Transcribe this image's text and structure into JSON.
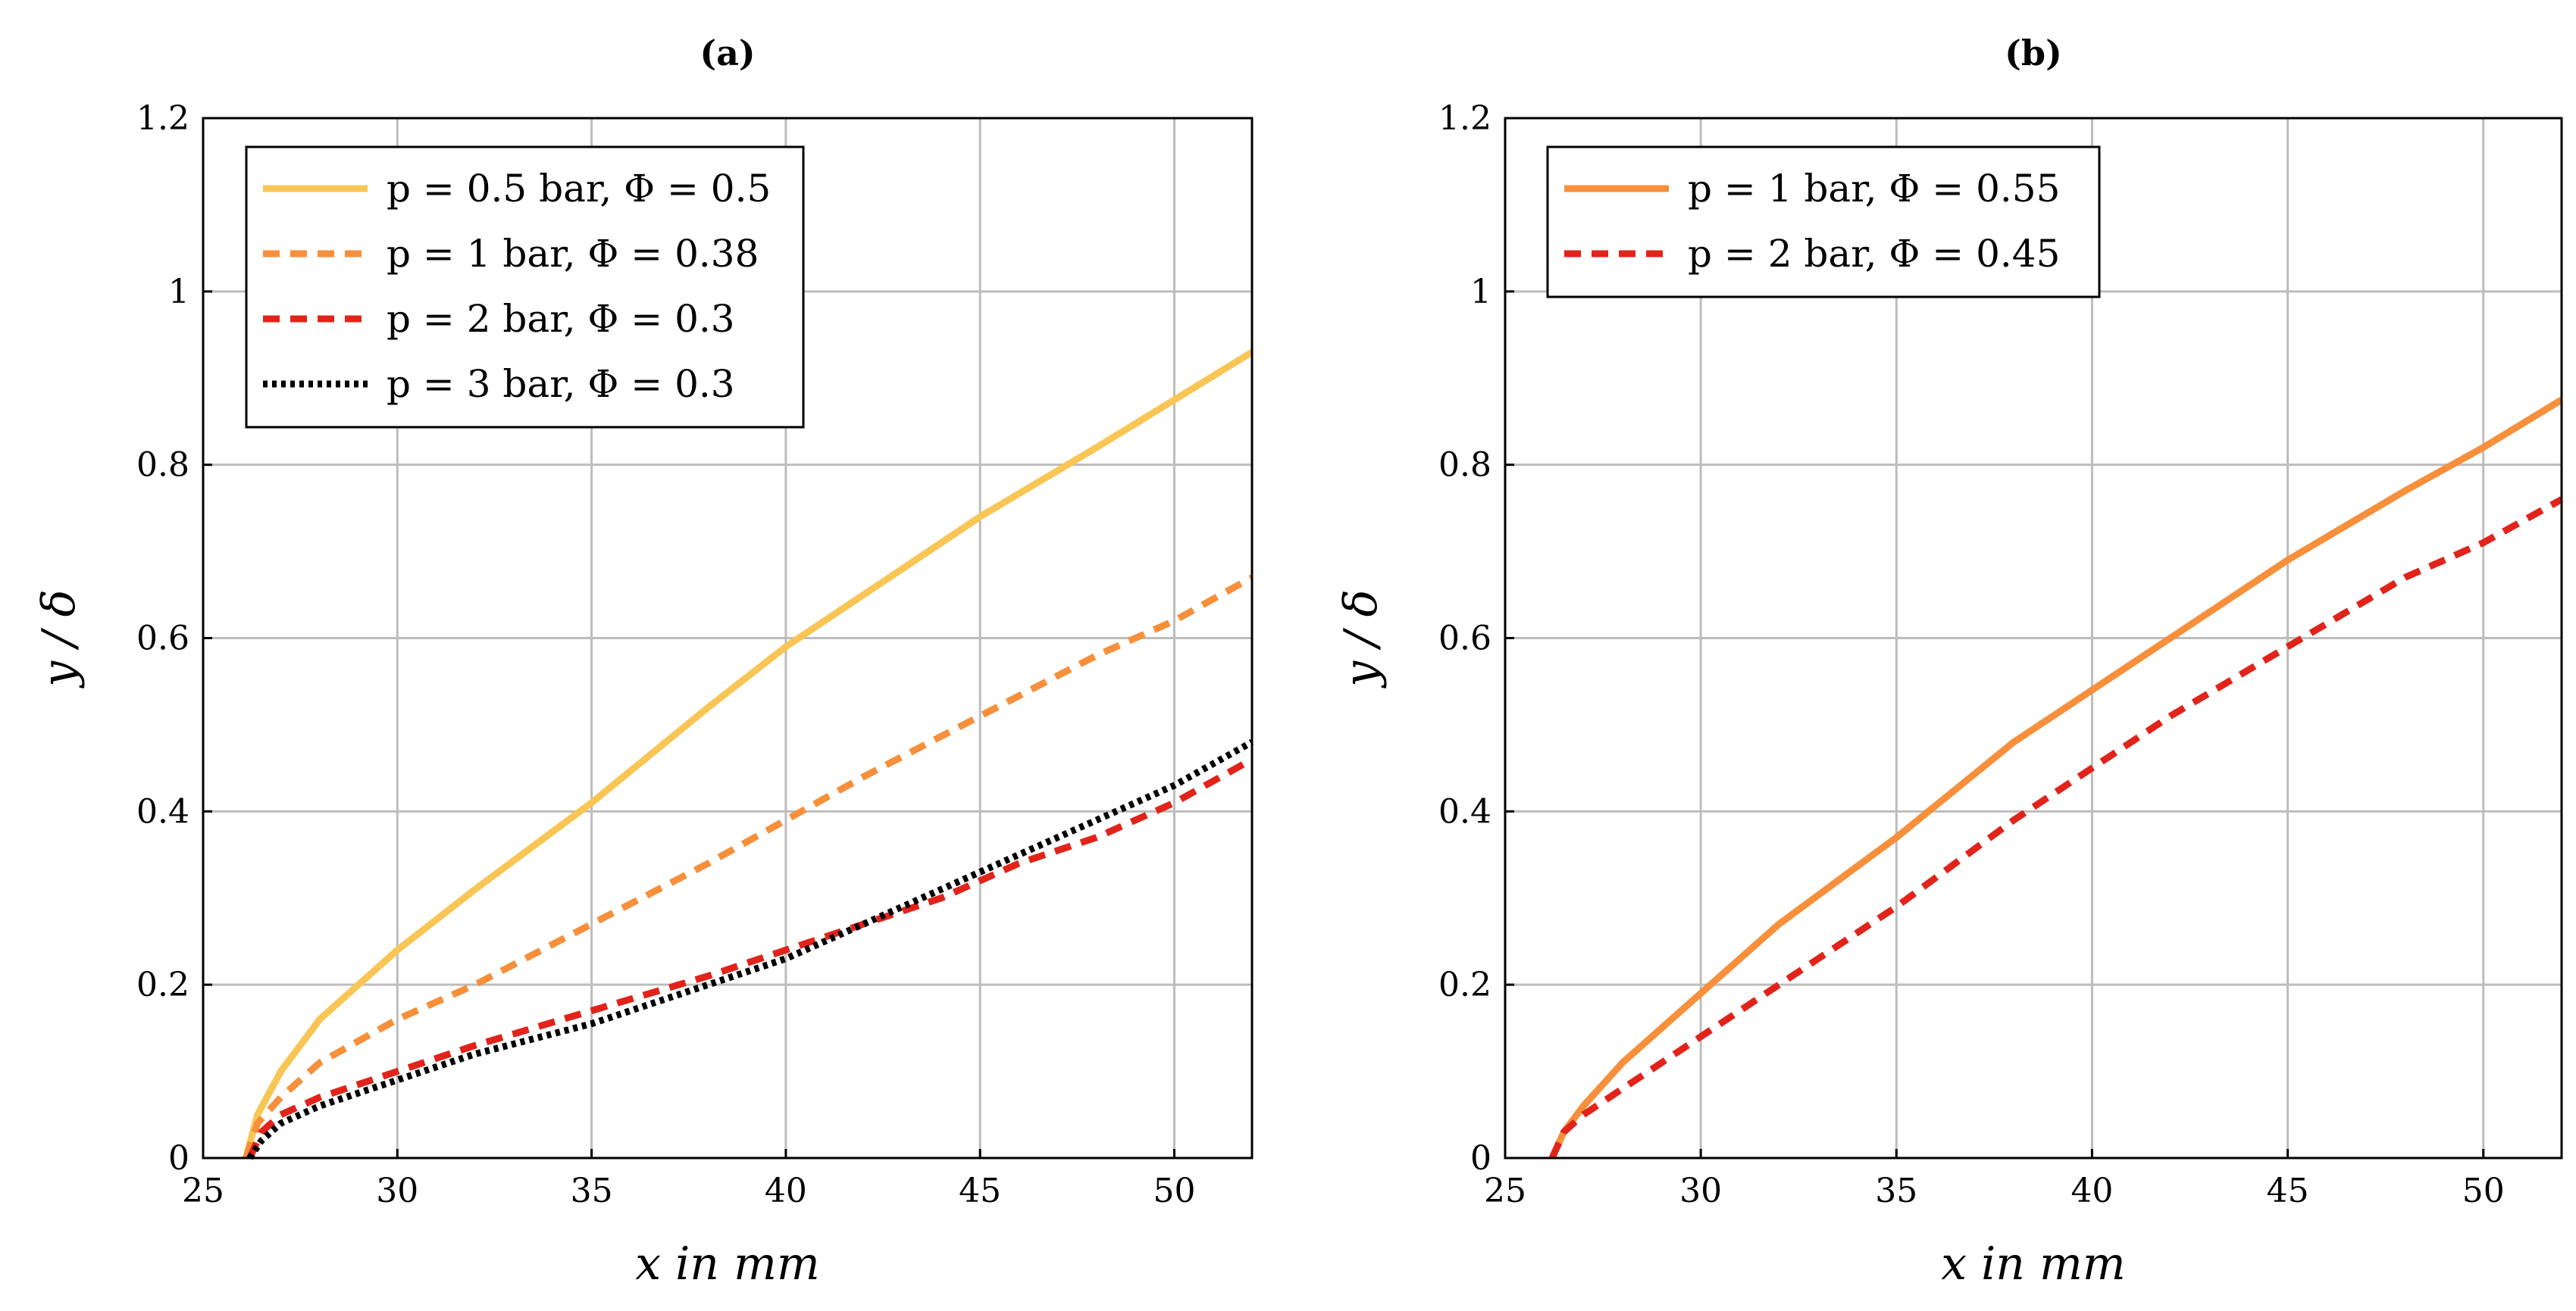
{
  "chart_data": [
    {
      "type": "line",
      "title": "(a)",
      "xlabel": "x in mm",
      "ylabel": "y / δ",
      "xlim": [
        25,
        52
      ],
      "ylim": [
        0,
        1.2
      ],
      "xticks": [
        "25",
        "30",
        "35",
        "40",
        "45",
        "50"
      ],
      "yticks": [
        "0",
        "0.2",
        "0.4",
        "0.6",
        "0.8",
        "1",
        "1.2"
      ],
      "legend_position": "top-left",
      "series": [
        {
          "name": "p = 0.5 bar, Φ = 0.5",
          "color": "#F9C655",
          "style": "solid",
          "x": [
            26.1,
            26.4,
            27.0,
            28.0,
            29.0,
            30.0,
            32.0,
            35.0,
            38.0,
            40.0,
            42.0,
            45.0,
            48.0,
            50.0,
            52.0
          ],
          "y": [
            0.0,
            0.05,
            0.1,
            0.16,
            0.2,
            0.24,
            0.31,
            0.41,
            0.52,
            0.59,
            0.65,
            0.74,
            0.82,
            0.875,
            0.93
          ]
        },
        {
          "name": "p = 1 bar, Φ = 0.38",
          "color": "#F78F3B",
          "style": "dashed",
          "x": [
            26.1,
            26.4,
            27.0,
            28.0,
            30.0,
            32.0,
            35.0,
            38.0,
            40.0,
            42.0,
            45.0,
            48.0,
            50.0,
            52.0
          ],
          "y": [
            0.0,
            0.04,
            0.07,
            0.11,
            0.16,
            0.2,
            0.27,
            0.34,
            0.39,
            0.44,
            0.51,
            0.58,
            0.62,
            0.67
          ]
        },
        {
          "name": "p = 2 bar, Φ = 0.3",
          "color": "#E2231A",
          "style": "dashed",
          "x": [
            26.2,
            26.5,
            27.0,
            28.0,
            30.0,
            32.0,
            35.0,
            38.0,
            40.0,
            42.0,
            44.0,
            46.0,
            48.0,
            50.0,
            52.0
          ],
          "y": [
            0.0,
            0.03,
            0.05,
            0.07,
            0.1,
            0.13,
            0.17,
            0.21,
            0.24,
            0.27,
            0.3,
            0.34,
            0.37,
            0.41,
            0.46
          ]
        },
        {
          "name": "p = 3 bar, Φ = 0.3",
          "color": "#000000",
          "style": "dotted",
          "x": [
            26.2,
            26.5,
            27.0,
            28.0,
            30.0,
            32.0,
            35.0,
            38.0,
            40.0,
            42.0,
            44.0,
            46.0,
            48.0,
            50.0,
            52.0
          ],
          "y": [
            0.0,
            0.02,
            0.04,
            0.06,
            0.09,
            0.12,
            0.155,
            0.2,
            0.23,
            0.27,
            0.31,
            0.35,
            0.39,
            0.43,
            0.48
          ]
        }
      ]
    },
    {
      "type": "line",
      "title": "(b)",
      "xlabel": "x in mm",
      "ylabel": "y / δ",
      "xlim": [
        25,
        52
      ],
      "ylim": [
        0,
        1.2
      ],
      "xticks": [
        "25",
        "30",
        "35",
        "40",
        "45",
        "50"
      ],
      "yticks": [
        "0",
        "0.2",
        "0.4",
        "0.6",
        "0.8",
        "1",
        "1.2"
      ],
      "legend_position": "top-left",
      "series": [
        {
          "name": "p = 1 bar, Φ = 0.55",
          "color": "#F78F3B",
          "style": "solid",
          "x": [
            26.2,
            26.5,
            27.0,
            28.0,
            30.0,
            32.0,
            35.0,
            38.0,
            40.0,
            42.0,
            45.0,
            48.0,
            50.0,
            52.0
          ],
          "y": [
            0.0,
            0.03,
            0.06,
            0.11,
            0.19,
            0.27,
            0.37,
            0.48,
            0.54,
            0.6,
            0.69,
            0.77,
            0.82,
            0.875
          ]
        },
        {
          "name": "p = 2 bar, Φ = 0.45",
          "color": "#E2231A",
          "style": "dashed",
          "x": [
            26.2,
            26.5,
            27.0,
            28.0,
            30.0,
            32.0,
            35.0,
            38.0,
            40.0,
            42.0,
            45.0,
            48.0,
            50.0,
            52.0
          ],
          "y": [
            0.0,
            0.03,
            0.05,
            0.08,
            0.14,
            0.2,
            0.29,
            0.39,
            0.45,
            0.51,
            0.59,
            0.67,
            0.71,
            0.76
          ]
        }
      ]
    }
  ]
}
